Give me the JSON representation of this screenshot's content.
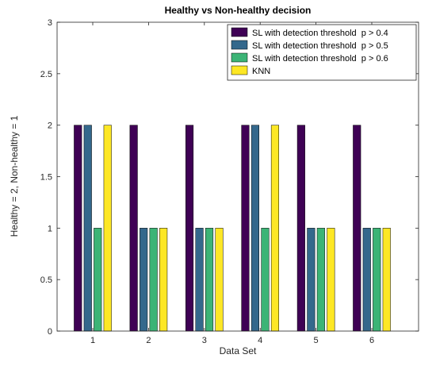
{
  "chart_data": {
    "type": "bar",
    "title": "Healthy vs Non-healthy decision",
    "xlabel": "Data Set",
    "ylabel": "Healthy = 2, Non-healthy = 1",
    "ylim": [
      0,
      3
    ],
    "yticks": [
      0,
      0.5,
      1,
      1.5,
      2,
      2.5,
      3
    ],
    "ytick_labels": [
      "0",
      "0.5",
      "1",
      "1.5",
      "2",
      "2.5",
      "3"
    ],
    "categories": [
      "1",
      "2",
      "3",
      "4",
      "5",
      "6"
    ],
    "legend_position": "top-right",
    "grid": false,
    "series": [
      {
        "name": "SL with detection threshold  p > 0.4",
        "color": "#3f0155",
        "values": [
          2,
          2,
          2,
          2,
          2,
          2
        ]
      },
      {
        "name": "SL with detection threshold  p > 0.5",
        "color": "#34688c",
        "values": [
          2,
          1,
          1,
          2,
          1,
          1
        ]
      },
      {
        "name": "SL with detection threshold  p > 0.6",
        "color": "#3cb476",
        "values": [
          1,
          1,
          1,
          1,
          1,
          1
        ]
      },
      {
        "name": "KNN",
        "color": "#fde725",
        "values": [
          2,
          1,
          1,
          2,
          1,
          1
        ]
      }
    ]
  }
}
